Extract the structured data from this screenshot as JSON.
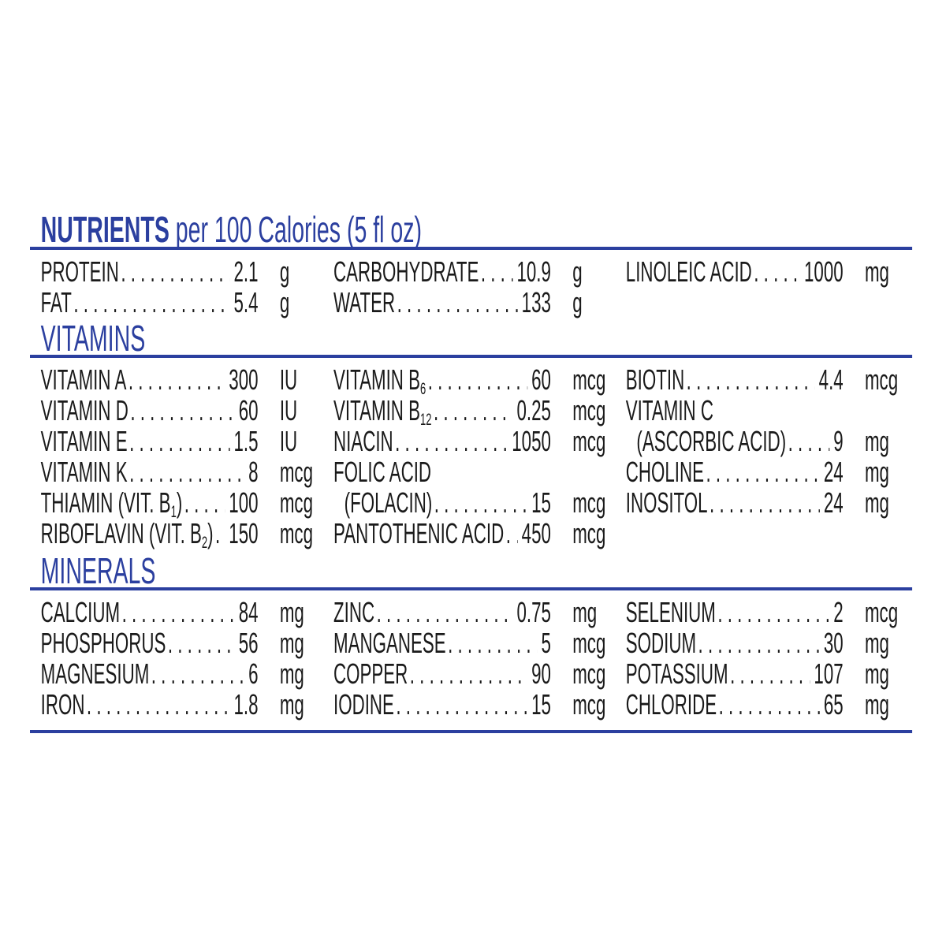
{
  "colors": {
    "accent": "#2b3f9f",
    "text": "#1a1a1a"
  },
  "title": {
    "bold": "NUTRIENTS",
    "rest": "per 100 Calories (5 fl oz)"
  },
  "sections": [
    {
      "heading": "",
      "columns": [
        [
          {
            "name": "PROTEIN",
            "value": "2.1",
            "unit": "g"
          },
          {
            "name": "FAT",
            "value": "5.4",
            "unit": "g"
          }
        ],
        [
          {
            "name": "CARBOHYDRATE",
            "value": "10.9",
            "unit": "g"
          },
          {
            "name": "WATER",
            "value": "133",
            "unit": "g"
          }
        ],
        [
          {
            "name": "LINOLEIC ACID",
            "value": "1000",
            "unit": "mg"
          }
        ]
      ]
    },
    {
      "heading": "VITAMINS",
      "columns": [
        [
          {
            "name": "VITAMIN A",
            "value": "300",
            "unit": "IU"
          },
          {
            "name": "VITAMIN D",
            "value": "60",
            "unit": "IU"
          },
          {
            "name": "VITAMIN E",
            "value": "1.5",
            "unit": "IU"
          },
          {
            "name": "VITAMIN K",
            "value": "8",
            "unit": "mcg"
          },
          {
            "name": "THIAMIN (VIT. B",
            "sub": "1",
            "after": ")",
            "value": "100",
            "unit": "mcg"
          },
          {
            "name": "RIBOFLAVIN (VIT. B",
            "sub": "2",
            "after": ")",
            "value": "150",
            "unit": "mcg"
          }
        ],
        [
          {
            "name": "VITAMIN B",
            "sub": "6",
            "value": "60",
            "unit": "mcg"
          },
          {
            "name": "VITAMIN B",
            "sub": "12",
            "value": "0.25",
            "unit": "mcg"
          },
          {
            "name": "NIACIN",
            "value": "1050",
            "unit": "mcg"
          },
          {
            "name": "FOLIC ACID",
            "label_only": true
          },
          {
            "name": "(FOLACIN)",
            "indent": true,
            "value": "15",
            "unit": "mcg"
          },
          {
            "name": "PANTOTHENIC ACID",
            "value": "450",
            "unit": "mcg"
          }
        ],
        [
          {
            "name": "BIOTIN",
            "value": "4.4",
            "unit": "mcg"
          },
          {
            "name": "VITAMIN C",
            "label_only": true
          },
          {
            "name": "(ASCORBIC ACID)",
            "indent": true,
            "value": "9",
            "unit": "mg"
          },
          {
            "name": "CHOLINE",
            "value": "24",
            "unit": "mg"
          },
          {
            "name": "INOSITOL",
            "value": "24",
            "unit": "mg"
          }
        ]
      ]
    },
    {
      "heading": "MINERALS",
      "columns": [
        [
          {
            "name": "CALCIUM",
            "value": "84",
            "unit": "mg"
          },
          {
            "name": "PHOSPHORUS",
            "value": "56",
            "unit": "mg"
          },
          {
            "name": "MAGNESIUM",
            "value": "6",
            "unit": "mg"
          },
          {
            "name": "IRON",
            "value": "1.8",
            "unit": "mg"
          }
        ],
        [
          {
            "name": "ZINC",
            "value": "0.75",
            "unit": "mg"
          },
          {
            "name": "MANGANESE",
            "value": "5",
            "unit": "mcg"
          },
          {
            "name": "COPPER",
            "value": "90",
            "unit": "mcg"
          },
          {
            "name": "IODINE",
            "value": "15",
            "unit": "mcg"
          }
        ],
        [
          {
            "name": "SELENIUM",
            "value": "2",
            "unit": "mcg"
          },
          {
            "name": "SODIUM",
            "value": "30",
            "unit": "mg"
          },
          {
            "name": "POTASSIUM",
            "value": "107",
            "unit": "mg"
          },
          {
            "name": "CHLORIDE",
            "value": "65",
            "unit": "mg"
          }
        ]
      ]
    }
  ]
}
